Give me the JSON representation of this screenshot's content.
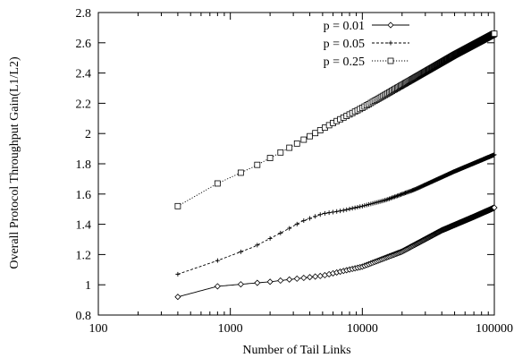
{
  "chart_data": {
    "type": "line",
    "title": "",
    "xlabel": "Number of Tail Links",
    "ylabel": "Overall Protocol Throughput Gain(L1/L2)",
    "x_scale": "log",
    "xlim": [
      100,
      100000
    ],
    "ylim": [
      0.8,
      2.8
    ],
    "x_ticks": [
      100,
      1000,
      10000,
      100000
    ],
    "x_tick_labels": [
      "100",
      "1000",
      "10000",
      "100000"
    ],
    "y_ticks": [
      0.8,
      1,
      1.2,
      1.4,
      1.6,
      1.8,
      2,
      2.2,
      2.4,
      2.6,
      2.8
    ],
    "y_tick_labels": [
      "0.8",
      "1",
      "1.2",
      "1.4",
      "1.6",
      "1.8",
      "2",
      "2.2",
      "2.4",
      "2.6",
      "2.8"
    ],
    "grid": false,
    "legend_position": "top-right",
    "series": [
      {
        "name": "p = 0.01",
        "marker": "diamond",
        "line_style": "solid",
        "points": [
          [
            400,
            0.92
          ],
          [
            800,
            0.99
          ],
          [
            2000,
            1.02
          ],
          [
            5000,
            1.06
          ],
          [
            10000,
            1.12
          ],
          [
            20000,
            1.22
          ],
          [
            40000,
            1.36
          ],
          [
            70000,
            1.45
          ],
          [
            100000,
            1.51
          ]
        ]
      },
      {
        "name": "p = 0.05",
        "marker": "plus",
        "line_style": "dashed",
        "points": [
          [
            400,
            1.07
          ],
          [
            800,
            1.16
          ],
          [
            1500,
            1.25
          ],
          [
            2500,
            1.35
          ],
          [
            3500,
            1.42
          ],
          [
            5000,
            1.47
          ],
          [
            7000,
            1.49
          ],
          [
            10000,
            1.52
          ],
          [
            15000,
            1.56
          ],
          [
            25000,
            1.63
          ],
          [
            50000,
            1.75
          ],
          [
            100000,
            1.86
          ]
        ]
      },
      {
        "name": "p = 0.25",
        "marker": "square",
        "line_style": "dotted",
        "points": [
          [
            400,
            1.52
          ],
          [
            800,
            1.67
          ],
          [
            1500,
            1.78
          ],
          [
            3000,
            1.92
          ],
          [
            6000,
            2.07
          ],
          [
            10000,
            2.17
          ],
          [
            20000,
            2.32
          ],
          [
            50000,
            2.52
          ],
          [
            100000,
            2.66
          ]
        ]
      }
    ]
  }
}
